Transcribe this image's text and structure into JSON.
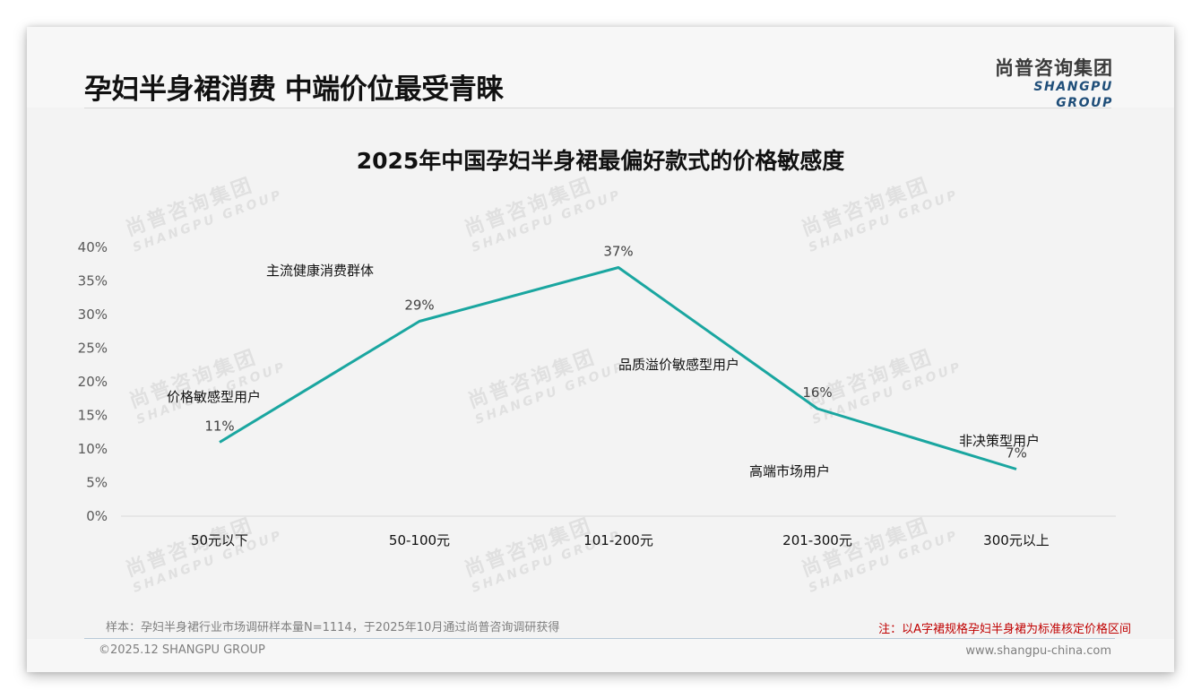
{
  "header": {
    "title": "孕妇半身裙消费 中端价位最受青睐",
    "logo_cn": "尚普咨询集团",
    "logo_en": "SHANGPU GROUP"
  },
  "watermark": {
    "cn": "尚普咨询集团",
    "en": "SHANGPU GROUP"
  },
  "chart_data": {
    "type": "line",
    "title": "2025年中国孕妇半身裙最偏好款式的价格敏感度",
    "categories": [
      "50元以下",
      "50-100元",
      "101-200元",
      "201-300元",
      "300元以上"
    ],
    "values": [
      11,
      29,
      37,
      16,
      7
    ],
    "value_labels": [
      "11%",
      "29%",
      "37%",
      "16%",
      "7%"
    ],
    "xlabel": "",
    "ylabel": "",
    "ylim": [
      0,
      40
    ],
    "yticks": [
      "0%",
      "5%",
      "10%",
      "15%",
      "20%",
      "25%",
      "30%",
      "35%",
      "40%"
    ],
    "grid": false,
    "legend": "none",
    "line_color": "#1aa6a0",
    "annotations": [
      "价格敏感型用户",
      "主流健康消费群体",
      "品质溢价敏感型用户",
      "高端市场用户",
      "非决策型用户"
    ]
  },
  "footer": {
    "sample": "样本：孕妇半身裙行业市场调研样本量N=1114，于2025年10月通过尚普咨询调研获得",
    "note": "注：以A字裙规格孕妇半身裙为标准核定价格区间",
    "copyright": "©2025.12 SHANGPU GROUP",
    "website": "www.shangpu-china.com"
  }
}
